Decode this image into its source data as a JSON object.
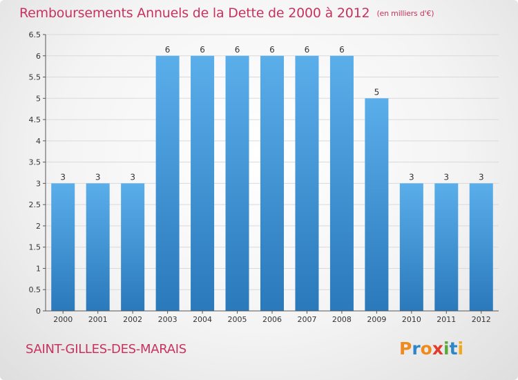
{
  "chart_data": {
    "type": "bar",
    "title": "Remboursements Annuels de la Dette de 2000 à 2012",
    "unit_note": "(en milliers d'€)",
    "categories": [
      "2000",
      "2001",
      "2002",
      "2003",
      "2004",
      "2005",
      "2006",
      "2007",
      "2008",
      "2009",
      "2010",
      "2011",
      "2012"
    ],
    "values": [
      3,
      3,
      3,
      6,
      6,
      6,
      6,
      6,
      6,
      5,
      3,
      3,
      3
    ],
    "data_labels": [
      "3",
      "3",
      "3",
      "6",
      "6",
      "6",
      "6",
      "6",
      "6",
      "5",
      "3",
      "3",
      "3"
    ],
    "y_ticks": [
      "0",
      "0.5",
      "1",
      "1.5",
      "2",
      "2.5",
      "3",
      "3.5",
      "4",
      "4.5",
      "5",
      "5.5",
      "6",
      "6.5"
    ],
    "ylim": [
      0,
      6.5
    ],
    "xlabel": "",
    "ylabel": "",
    "grid": true,
    "colors": {
      "bar_top": "#5aaeea",
      "bar_bottom": "#2a79bb",
      "grid": "#d9d9d9",
      "text": "#333333"
    }
  },
  "commune": "SAINT-GILLES-DES-MARAIS",
  "logo": {
    "letters": [
      "P",
      "r",
      "o",
      "x",
      "i",
      "t",
      "i"
    ],
    "colors": [
      "#f08a1c",
      "#2e86c9",
      "#f08a1c",
      "#e23b2e",
      "#5aa83c",
      "#2e86c9",
      "#f0a81c"
    ]
  }
}
